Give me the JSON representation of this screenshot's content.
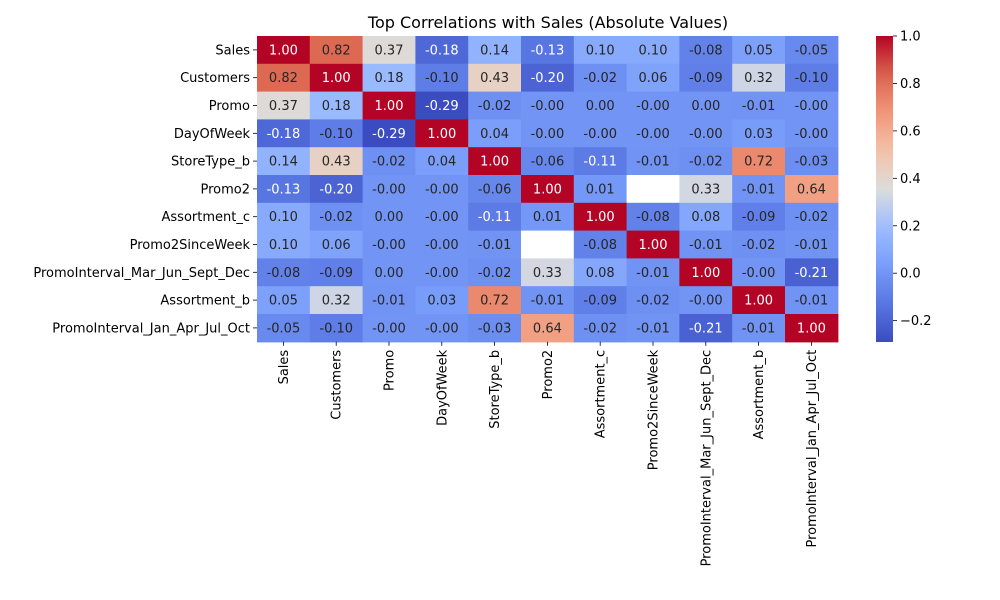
{
  "chart_data": {
    "type": "heatmap",
    "title": "Top Correlations with Sales (Absolute Values)",
    "xlabel": "",
    "ylabel": "",
    "rows": [
      "Sales",
      "Customers",
      "Promo",
      "DayOfWeek",
      "StoreType_b",
      "Promo2",
      "Assortment_c",
      "Promo2SinceWeek",
      "PromoInterval_Mar_Jun_Sept_Dec",
      "Assortment_b",
      "PromoInterval_Jan_Apr_Jul_Oct"
    ],
    "columns": [
      "Sales",
      "Customers",
      "Promo",
      "DayOfWeek",
      "StoreType_b",
      "Promo2",
      "Assortment_c",
      "Promo2SinceWeek",
      "PromoInterval_Mar_Jun_Sept_Dec",
      "Assortment_b",
      "PromoInterval_Jan_Apr_Jul_Oct"
    ],
    "values": [
      [
        1.0,
        0.82,
        0.37,
        -0.18,
        0.14,
        -0.13,
        0.1,
        0.1,
        -0.08,
        0.05,
        -0.05
      ],
      [
        0.82,
        1.0,
        0.18,
        -0.1,
        0.43,
        -0.2,
        -0.02,
        0.06,
        -0.09,
        0.32,
        -0.1
      ],
      [
        0.37,
        0.18,
        1.0,
        -0.29,
        -0.02,
        -0.0,
        0.0,
        -0.0,
        0.0,
        -0.01,
        -0.0
      ],
      [
        -0.18,
        -0.1,
        -0.29,
        1.0,
        0.04,
        -0.0,
        -0.0,
        -0.0,
        -0.0,
        0.03,
        -0.0
      ],
      [
        0.14,
        0.43,
        -0.02,
        0.04,
        1.0,
        -0.06,
        -0.11,
        -0.01,
        -0.02,
        0.72,
        -0.03
      ],
      [
        -0.13,
        -0.2,
        -0.0,
        -0.0,
        -0.06,
        1.0,
        0.01,
        null,
        0.33,
        -0.01,
        0.64
      ],
      [
        0.1,
        -0.02,
        0.0,
        -0.0,
        -0.11,
        0.01,
        1.0,
        -0.08,
        0.08,
        -0.09,
        -0.02
      ],
      [
        0.1,
        0.06,
        -0.0,
        -0.0,
        -0.01,
        null,
        -0.08,
        1.0,
        -0.01,
        -0.02,
        -0.01
      ],
      [
        -0.08,
        -0.09,
        0.0,
        -0.0,
        -0.02,
        0.33,
        0.08,
        -0.01,
        1.0,
        -0.0,
        -0.21
      ],
      [
        0.05,
        0.32,
        -0.01,
        0.03,
        0.72,
        -0.01,
        -0.09,
        -0.02,
        -0.0,
        1.0,
        -0.01
      ],
      [
        -0.05,
        -0.1,
        -0.0,
        -0.0,
        -0.03,
        0.64,
        -0.02,
        -0.01,
        -0.21,
        -0.01,
        1.0
      ]
    ],
    "value_format": "0.00",
    "colormap": "coolwarm",
    "vmin": -0.29,
    "vmax": 1.0,
    "colorbar_ticks": [
      1.0,
      0.8,
      0.6,
      0.4,
      0.2,
      0.0,
      -0.2
    ],
    "colorbar_tick_labels": [
      "1.0",
      "0.8",
      "0.6",
      "0.4",
      "0.2",
      "0.0",
      "−0.2"
    ],
    "missing_cell_color": "#ffffff",
    "annotation_dark_text": "#262626",
    "annotation_light_text": "#ffffff",
    "grid": false,
    "legend": "colorbar-right"
  }
}
